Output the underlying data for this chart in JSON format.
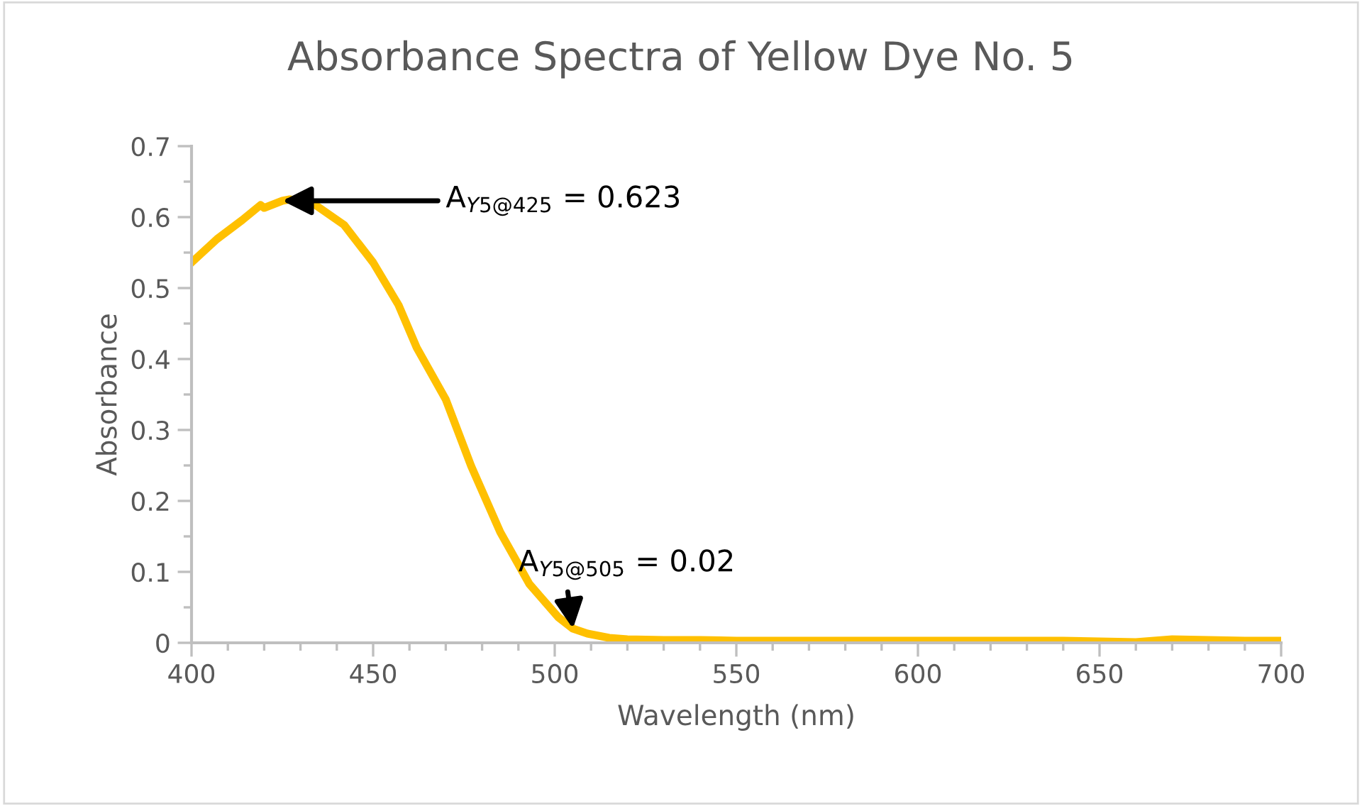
{
  "chart_data": {
    "type": "line",
    "title": "Absorbance Spectra of Yellow Dye No. 5",
    "xlabel": "Wavelength (nm)",
    "ylabel": "Absorbance",
    "x": [
      400,
      407,
      414,
      419,
      420,
      425,
      427,
      433,
      442,
      450,
      457,
      462,
      470,
      477,
      485,
      493,
      501,
      505,
      509,
      515,
      520,
      530,
      540,
      550,
      560,
      580,
      600,
      620,
      640,
      660,
      670,
      680,
      690,
      700
    ],
    "values": [
      0.536,
      0.569,
      0.596,
      0.617,
      0.613,
      0.623,
      0.625,
      0.621,
      0.589,
      0.536,
      0.476,
      0.416,
      0.343,
      0.249,
      0.156,
      0.083,
      0.036,
      0.02,
      0.013,
      0.007,
      0.005,
      0.004,
      0.004,
      0.003,
      0.003,
      0.003,
      0.003,
      0.003,
      0.003,
      0.001,
      0.005,
      0.004,
      0.003,
      0.003
    ],
    "color": "#ffc000",
    "marker": "none",
    "line_style": "solid",
    "grid": false,
    "legend": false,
    "xlim": [
      400,
      700
    ],
    "ylim": [
      0,
      0.7
    ],
    "xticks": [
      400,
      450,
      500,
      550,
      600,
      650,
      700
    ],
    "yticks": [
      0,
      0.1,
      0.2,
      0.3,
      0.4,
      0.5,
      0.6,
      0.7
    ],
    "annotations": [
      {
        "text": "A$_{Y5@425}$ = 0.623",
        "x": 425,
        "y": 0.623
      },
      {
        "text": "A$_{Y5@505}$ = 0.02",
        "x": 505,
        "y": 0.02
      }
    ]
  }
}
